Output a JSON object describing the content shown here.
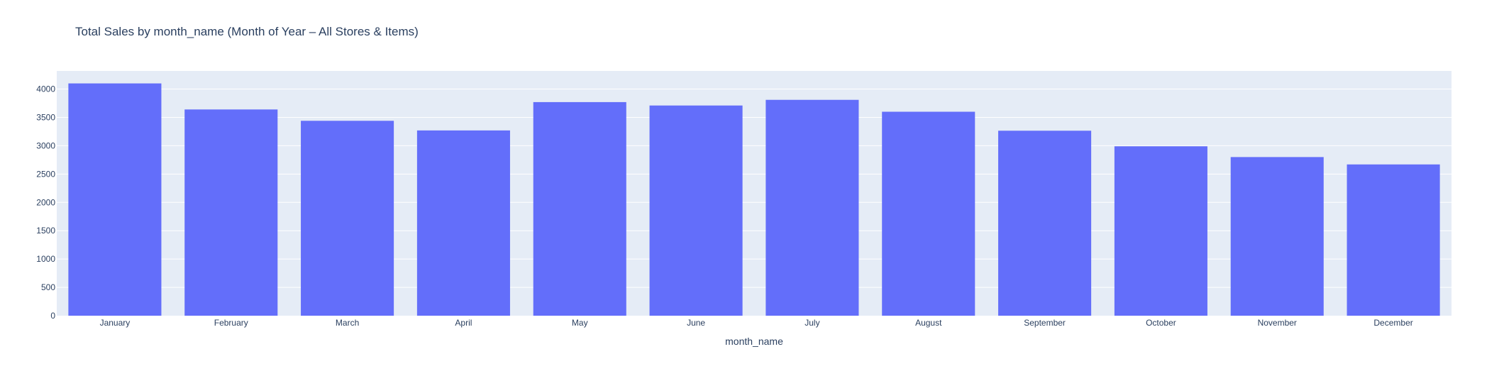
{
  "chart_data": {
    "type": "bar",
    "title": "Total Sales by month_name (Month of Year – All Stores & Items)",
    "xlabel": "month_name",
    "ylabel": "",
    "categories": [
      "January",
      "February",
      "March",
      "April",
      "May",
      "June",
      "July",
      "August",
      "September",
      "October",
      "November",
      "December"
    ],
    "values": [
      4100,
      3640,
      3440,
      3270,
      3770,
      3710,
      3810,
      3600,
      3265,
      2990,
      2800,
      2670
    ],
    "ylim": [
      0,
      4320
    ],
    "yticks": [
      0,
      500,
      1000,
      1500,
      2000,
      2500,
      3000,
      3500,
      4000
    ],
    "grid": true,
    "colors": {
      "bar": "#636efa",
      "plot_bg": "#e5ecf6",
      "grid": "#ffffff",
      "text": "#2a3f5f"
    }
  }
}
